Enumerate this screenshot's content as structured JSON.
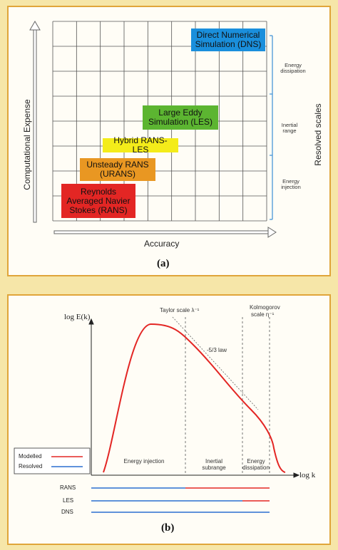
{
  "panel_a": {
    "label": "(a)",
    "y_axis": "Computational Expense",
    "x_axis": "Accuracy",
    "right_axis": "Resolved scales",
    "scale_labels": [
      "Energy dissipation",
      "Inertial range",
      "Energy injection"
    ],
    "boxes": [
      {
        "text": "Direct Numerical Simulation (DNS)",
        "color": "#1a8fdc"
      },
      {
        "text": "Large Eddy Simulation (LES)",
        "color": "#5cb531"
      },
      {
        "text": "Hybrid RANS-LES",
        "color": "#f4ec1a"
      },
      {
        "text": "Unsteady RANS (URANS)",
        "color": "#e99722"
      },
      {
        "text": "Reynolds Averaged Navier Stokes (RANS)",
        "color": "#e32624"
      }
    ]
  },
  "panel_b": {
    "label": "(b)",
    "y_axis": "log E(k)",
    "x_axis": "log k",
    "taylor": "Taylor scale λ⁻¹",
    "kolmogorov_line1": "Kolmogorov",
    "kolmogorov_line2": "scale η⁻¹",
    "slope": "-5/3 law",
    "regions": [
      "Energy injection",
      "Inertial subrange",
      "Energy dissipation"
    ],
    "legend": [
      {
        "name": "Modelled",
        "color": "#e32624"
      },
      {
        "name": "Resolved",
        "color": "#2a6fd1"
      }
    ],
    "methods": [
      "RANS",
      "LES",
      "DNS"
    ]
  }
}
